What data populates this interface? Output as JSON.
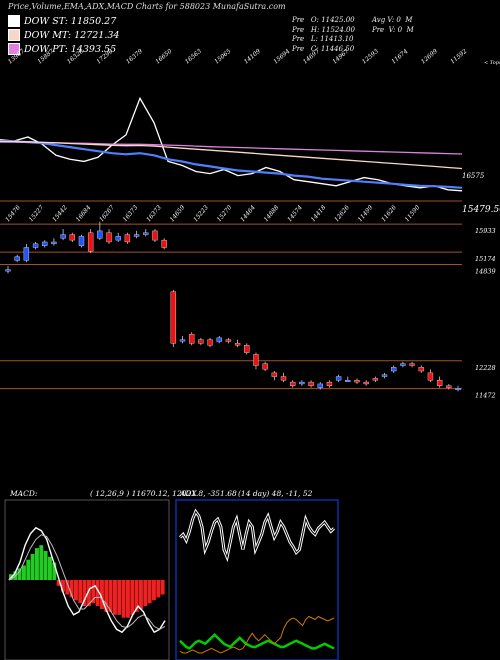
{
  "header": {
    "title": "Price,Volume,EMA,ADX,MACD Charts for 588023 MunafaSutra.com",
    "legend": [
      {
        "label": "DOW ST: 11850.27",
        "color": "#ffffff"
      },
      {
        "label": "DOW MT: 12721.34",
        "color": "#f7d8c8"
      },
      {
        "label": "DOW PT: 14393.55",
        "color": "#e080e0"
      }
    ],
    "stats_col1": [
      "Pre   O: 11425.00",
      "Pre   H: 11524.00",
      "Pre   L: 11413.10",
      "Pre   C: 11446.50"
    ],
    "stats_col2": [
      "Avg V: 0  M",
      "Pre  V: 0  M"
    ]
  },
  "chart_data": [
    {
      "type": "line",
      "name": "ema-panel",
      "top_labels": [
        "13967",
        "15887",
        "16326",
        "17290",
        "16379",
        "16650",
        "16563",
        "15065",
        "14109",
        "15694",
        "14697",
        "14967",
        "12593",
        "11674",
        "12699",
        "11592"
      ],
      "corner_label": "< Tops",
      "right_labels": [
        "16575",
        "15479.50"
      ],
      "series": [
        {
          "color": "#ffffff",
          "values": [
            13967,
            13900,
            14100,
            13750,
            13200,
            13000,
            12900,
            13100,
            13700,
            14200,
            16000,
            14800,
            12900,
            12700,
            12400,
            12300,
            12500,
            12200,
            12300,
            12600,
            12400,
            12000,
            11900,
            11800,
            11700,
            11900,
            12100,
            12000,
            11800,
            11700,
            11600,
            11700,
            11500,
            11450
          ]
        },
        {
          "color": "#4f7fff",
          "values": [
            13900,
            13880,
            13850,
            13800,
            13700,
            13600,
            13500,
            13400,
            13300,
            13250,
            13300,
            13200,
            13000,
            12900,
            12750,
            12650,
            12550,
            12450,
            12400,
            12350,
            12300,
            12200,
            12150,
            12050,
            12000,
            11950,
            11900,
            11850,
            11800,
            11750,
            11700,
            11680,
            11650,
            11600
          ]
        },
        {
          "color": "#e080e0",
          "values": [
            13850,
            13850,
            13840,
            13830,
            13820,
            13800,
            13790,
            13770,
            13750,
            13740,
            13740,
            13720,
            13700,
            13680,
            13650,
            13620,
            13600,
            13580,
            13560,
            13540,
            13520,
            13500,
            13480,
            13460,
            13440,
            13420,
            13400,
            13380,
            13360,
            13340,
            13320,
            13300,
            13280,
            13260
          ]
        },
        {
          "color": "#f7d8c8",
          "values": [
            13880,
            13870,
            13860,
            13840,
            13810,
            13780,
            13750,
            13720,
            13690,
            13670,
            13680,
            13650,
            13600,
            13550,
            13500,
            13450,
            13400,
            13350,
            13300,
            13250,
            13200,
            13150,
            13100,
            13050,
            13000,
            12950,
            12900,
            12850,
            12800,
            12750,
            12700,
            12650,
            12600,
            12550
          ]
        }
      ]
    },
    {
      "type": "candlestick",
      "name": "price-panel",
      "top_labels": [
        "15476",
        "15227",
        "15442",
        "16684",
        "16267",
        "16373",
        "16373",
        "14659",
        "15223",
        "15270",
        "14464",
        "14888",
        "14574",
        "14418",
        "12626",
        "11499",
        "11626",
        "11590"
      ],
      "levels": [
        {
          "value": 15933,
          "label": "15933"
        },
        {
          "value": 15174,
          "label": "15174"
        },
        {
          "value": 14839,
          "label": "14839"
        },
        {
          "value": 12228,
          "label": "12228"
        },
        {
          "value": 11472,
          "label": "11472"
        }
      ],
      "ylim": [
        11300,
        16100
      ],
      "candles": [
        {
          "o": 14700,
          "c": 14700,
          "h": 14800,
          "l": 14600,
          "up": true
        },
        {
          "o": 14950,
          "c": 15050,
          "h": 15100,
          "l": 14900,
          "up": true
        },
        {
          "o": 14950,
          "c": 15300,
          "h": 15400,
          "l": 14900,
          "up": true
        },
        {
          "o": 15300,
          "c": 15400,
          "h": 15450,
          "l": 15250,
          "up": true
        },
        {
          "o": 15350,
          "c": 15450,
          "h": 15500,
          "l": 15300,
          "up": true
        },
        {
          "o": 15400,
          "c": 15450,
          "h": 15550,
          "l": 15350,
          "up": true
        },
        {
          "o": 15550,
          "c": 15650,
          "h": 15800,
          "l": 15500,
          "up": true
        },
        {
          "o": 15650,
          "c": 15500,
          "h": 15700,
          "l": 15450,
          "up": false
        },
        {
          "o": 15350,
          "c": 15600,
          "h": 15650,
          "l": 15300,
          "up": true
        },
        {
          "o": 15700,
          "c": 15200,
          "h": 15800,
          "l": 15150,
          "up": false
        },
        {
          "o": 15550,
          "c": 15750,
          "h": 16000,
          "l": 15500,
          "up": true
        },
        {
          "o": 15700,
          "c": 15450,
          "h": 15800,
          "l": 15400,
          "up": false
        },
        {
          "o": 15500,
          "c": 15600,
          "h": 15700,
          "l": 15450,
          "up": true
        },
        {
          "o": 15650,
          "c": 15450,
          "h": 15700,
          "l": 15400,
          "up": false
        },
        {
          "o": 15600,
          "c": 15650,
          "h": 15750,
          "l": 15550,
          "up": true
        },
        {
          "o": 15650,
          "c": 15700,
          "h": 15800,
          "l": 15600,
          "up": true
        },
        {
          "o": 15750,
          "c": 15500,
          "h": 15800,
          "l": 15450,
          "up": false
        },
        {
          "o": 15500,
          "c": 15300,
          "h": 15550,
          "l": 15250,
          "up": false
        },
        {
          "o": 14100,
          "c": 12700,
          "h": 14150,
          "l": 12600,
          "up": false
        },
        {
          "o": 12800,
          "c": 12800,
          "h": 12900,
          "l": 12700,
          "up": true
        },
        {
          "o": 12950,
          "c": 12700,
          "h": 13000,
          "l": 12650,
          "up": false
        },
        {
          "o": 12800,
          "c": 12700,
          "h": 12850,
          "l": 12650,
          "up": false
        },
        {
          "o": 12800,
          "c": 12650,
          "h": 12850,
          "l": 12600,
          "up": false
        },
        {
          "o": 12750,
          "c": 12850,
          "h": 12900,
          "l": 12700,
          "up": true
        },
        {
          "o": 12800,
          "c": 12750,
          "h": 12850,
          "l": 12700,
          "up": false
        },
        {
          "o": 12700,
          "c": 12650,
          "h": 12800,
          "l": 12600,
          "up": false
        },
        {
          "o": 12650,
          "c": 12450,
          "h": 12700,
          "l": 12400,
          "up": false
        },
        {
          "o": 12400,
          "c": 12100,
          "h": 12450,
          "l": 12000,
          "up": false
        },
        {
          "o": 12150,
          "c": 12000,
          "h": 12200,
          "l": 11950,
          "up": false
        },
        {
          "o": 11900,
          "c": 11800,
          "h": 11950,
          "l": 11700,
          "up": false
        },
        {
          "o": 11800,
          "c": 11700,
          "h": 11900,
          "l": 11650,
          "up": false
        },
        {
          "o": 11650,
          "c": 11550,
          "h": 11700,
          "l": 11500,
          "up": false
        },
        {
          "o": 11600,
          "c": 11650,
          "h": 11700,
          "l": 11550,
          "up": true
        },
        {
          "o": 11650,
          "c": 11550,
          "h": 11700,
          "l": 11500,
          "up": false
        },
        {
          "o": 11500,
          "c": 11600,
          "h": 11650,
          "l": 11450,
          "up": true
        },
        {
          "o": 11650,
          "c": 11550,
          "h": 11700,
          "l": 11500,
          "up": false
        },
        {
          "o": 11700,
          "c": 11800,
          "h": 11850,
          "l": 11650,
          "up": true
        },
        {
          "o": 11700,
          "c": 11700,
          "h": 11800,
          "l": 11650,
          "up": true
        },
        {
          "o": 11700,
          "c": 11650,
          "h": 11750,
          "l": 11600,
          "up": false
        },
        {
          "o": 11650,
          "c": 11600,
          "h": 11700,
          "l": 11550,
          "up": false
        },
        {
          "o": 11750,
          "c": 11700,
          "h": 11800,
          "l": 11650,
          "up": false
        },
        {
          "o": 11800,
          "c": 11850,
          "h": 11900,
          "l": 11750,
          "up": true
        },
        {
          "o": 11950,
          "c": 12050,
          "h": 12100,
          "l": 11900,
          "up": true
        },
        {
          "o": 12100,
          "c": 12150,
          "h": 12200,
          "l": 12050,
          "up": true
        },
        {
          "o": 12150,
          "c": 12100,
          "h": 12200,
          "l": 12050,
          "up": false
        },
        {
          "o": 12050,
          "c": 11950,
          "h": 12100,
          "l": 11900,
          "up": false
        },
        {
          "o": 11900,
          "c": 11700,
          "h": 12000,
          "l": 11650,
          "up": false
        },
        {
          "o": 11700,
          "c": 11550,
          "h": 11800,
          "l": 11500,
          "up": false
        },
        {
          "o": 11550,
          "c": 11500,
          "h": 11600,
          "l": 11450,
          "up": false
        },
        {
          "o": 11450,
          "c": 11480,
          "h": 11550,
          "l": 11400,
          "up": true
        }
      ]
    },
    {
      "type": "bar",
      "name": "macd-panel",
      "label": "MACD:",
      "params": "( 12,26,9 ) 11670.12,  12021.8,  -351.68",
      "ylim": [
        -1,
        1
      ],
      "values": [
        0.1,
        0.15,
        0.2,
        0.25,
        0.35,
        0.45,
        0.55,
        0.6,
        0.5,
        0.4,
        0.3,
        -0.1,
        -0.2,
        -0.25,
        -0.3,
        -0.35,
        -0.4,
        -0.45,
        -0.45,
        -0.4,
        -0.45,
        -0.5,
        -0.55,
        -0.55,
        -0.6,
        -0.6,
        -0.65,
        -0.65,
        -0.6,
        -0.55,
        -0.5,
        -0.45,
        -0.4,
        -0.35,
        -0.3,
        -0.25
      ],
      "macd_line": [
        0.0,
        0.1,
        0.3,
        0.6,
        0.8,
        0.9,
        0.85,
        0.7,
        0.4,
        0.1,
        -0.2,
        -0.45,
        -0.6,
        -0.55,
        -0.35,
        -0.15,
        -0.1,
        -0.25,
        -0.5,
        -0.7,
        -0.85,
        -0.9,
        -0.8,
        -0.6,
        -0.45,
        -0.55,
        -0.75,
        -0.9,
        -0.85,
        -0.7
      ],
      "signal_line": [
        0.0,
        0.05,
        0.15,
        0.35,
        0.55,
        0.7,
        0.78,
        0.75,
        0.6,
        0.4,
        0.15,
        -0.1,
        -0.35,
        -0.5,
        -0.5,
        -0.4,
        -0.3,
        -0.3,
        -0.4,
        -0.55,
        -0.7,
        -0.8,
        -0.82,
        -0.75,
        -0.65,
        -0.6,
        -0.68,
        -0.8,
        -0.85,
        -0.8
      ]
    },
    {
      "type": "line",
      "name": "adx-panel",
      "label": "ADX",
      "params": "(14 day) 48, -11, 52",
      "ylim": [
        0,
        100
      ],
      "series": [
        {
          "name": "",
          "color": "#ffffff",
          "values": [
            78,
            80,
            76,
            82,
            90,
            95,
            92,
            85,
            70,
            75,
            82,
            88,
            90,
            85,
            70,
            65,
            75,
            85,
            90,
            80,
            70,
            80,
            88,
            85,
            70,
            75,
            80,
            88,
            92,
            85,
            78,
            82,
            88,
            85,
            80,
            75,
            72,
            68,
            70,
            80,
            90,
            85,
            82,
            80,
            84,
            86,
            88,
            85,
            82,
            84
          ]
        },
        {
          "name": "",
          "color": "#00cc00",
          "values": [
            10,
            8,
            6,
            5,
            7,
            9,
            10,
            9,
            8,
            10,
            12,
            14,
            12,
            10,
            8,
            7,
            6,
            8,
            10,
            12,
            10,
            8,
            7,
            6,
            6,
            7,
            8,
            9,
            10,
            9,
            8,
            7,
            6,
            6,
            7,
            8,
            9,
            10,
            9,
            8,
            7,
            6,
            5,
            5,
            6,
            7,
            8,
            7,
            6,
            5
          ]
        },
        {
          "name": "",
          "color": "#cc7a00",
          "values": [
            3,
            2,
            2,
            3,
            4,
            3,
            2,
            2,
            3,
            4,
            5,
            4,
            3,
            2,
            3,
            4,
            5,
            6,
            5,
            4,
            5,
            8,
            12,
            15,
            12,
            10,
            12,
            14,
            12,
            10,
            8,
            10,
            12,
            18,
            22,
            24,
            25,
            24,
            22,
            20,
            24,
            26,
            25,
            24,
            26,
            25,
            24,
            23,
            24,
            25
          ]
        }
      ]
    }
  ]
}
